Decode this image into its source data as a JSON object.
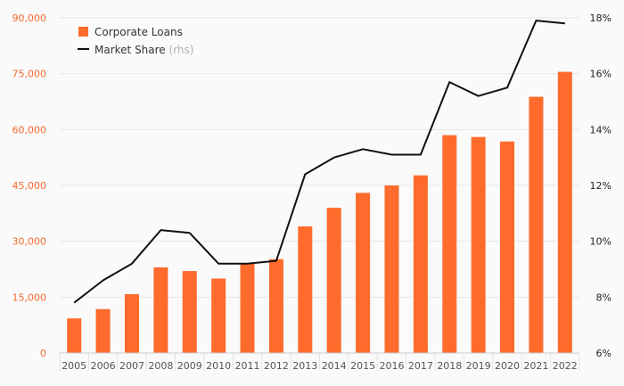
{
  "chart_data": {
    "type": "bar",
    "categories": [
      "2005",
      "2006",
      "2007",
      "2008",
      "2009",
      "2010",
      "2011",
      "2012",
      "2013",
      "2014",
      "2015",
      "2016",
      "2017",
      "2018",
      "2019",
      "2020",
      "2021",
      "2022"
    ],
    "series": [
      {
        "name": "Corporate Loans",
        "type": "bar",
        "axis": "left",
        "color": "#ff6b2c",
        "values": [
          9300,
          11800,
          15800,
          23000,
          22000,
          20000,
          24000,
          25200,
          34000,
          39000,
          43000,
          45000,
          47700,
          58500,
          58000,
          56800,
          68800,
          75500
        ]
      },
      {
        "name": "Market Share",
        "name_suffix": "(rhs)",
        "type": "line",
        "axis": "right",
        "color": "#111111",
        "values": [
          7.8,
          8.6,
          9.2,
          10.4,
          10.3,
          9.2,
          9.2,
          9.3,
          12.4,
          13.0,
          13.3,
          13.1,
          13.1,
          15.7,
          15.2,
          15.5,
          17.9,
          17.8
        ]
      }
    ],
    "y_left": {
      "ylim": [
        0,
        90000
      ],
      "ticks": [
        0,
        15000,
        30000,
        45000,
        60000,
        75000,
        90000
      ],
      "tick_labels": [
        "0",
        "15,000",
        "30,000",
        "45,000",
        "60,000",
        "75,000",
        "90,000"
      ],
      "color": "#f26a2e"
    },
    "y_right": {
      "ylim": [
        6,
        18
      ],
      "ticks": [
        6,
        8,
        10,
        12,
        14,
        16,
        18
      ],
      "tick_labels": [
        "6%",
        "8%",
        "10%",
        "12%",
        "14%",
        "16%",
        "18%"
      ]
    },
    "grid": true,
    "legend_position": "top-left",
    "title": "",
    "xlabel": "",
    "ylabel": ""
  }
}
